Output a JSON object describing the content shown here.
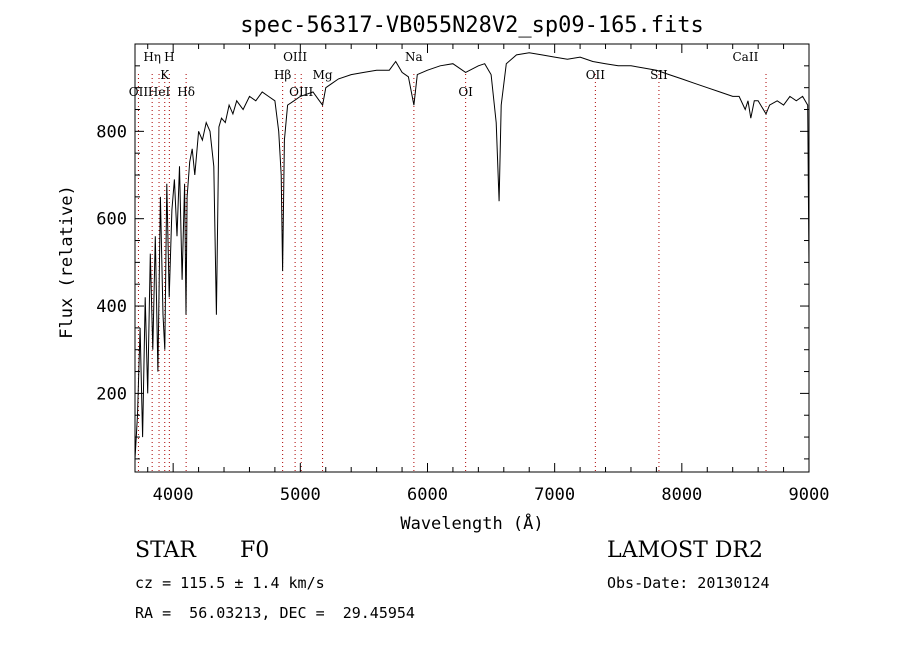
{
  "chart_data": {
    "type": "line",
    "title": "spec-56317-VB055N28V2_sp09-165.fits",
    "xlabel": "Wavelength (Å)",
    "ylabel": "Flux (relative)",
    "xlim": [
      3700,
      9000
    ],
    "ylim": [
      20,
      1000
    ],
    "x_ticks": [
      4000,
      5000,
      6000,
      7000,
      8000,
      9000
    ],
    "y_ticks": [
      200,
      400,
      600,
      800
    ],
    "grid": false,
    "series": [
      {
        "x": [
          3700,
          3720,
          3740,
          3760,
          3780,
          3800,
          3820,
          3840,
          3860,
          3880,
          3900,
          3920,
          3934,
          3950,
          3969,
          3990,
          4010,
          4030,
          4050,
          4070,
          4090,
          4101,
          4110,
          4130,
          4150,
          4170,
          4200,
          4230,
          4260,
          4290,
          4320,
          4340,
          4360,
          4380,
          4410,
          4440,
          4470,
          4500,
          4550,
          4600,
          4650,
          4700,
          4750,
          4800,
          4830,
          4850,
          4861,
          4875,
          4900,
          4950,
          5000,
          5050,
          5100,
          5150,
          5175,
          5200,
          5250,
          5300,
          5400,
          5500,
          5600,
          5700,
          5750,
          5800,
          5850,
          5893,
          5920,
          6000,
          6100,
          6200,
          6300,
          6400,
          6450,
          6500,
          6540,
          6563,
          6580,
          6620,
          6700,
          6800,
          6900,
          7000,
          7100,
          7200,
          7300,
          7400,
          7500,
          7600,
          7700,
          7800,
          7900,
          8000,
          8100,
          8200,
          8300,
          8400,
          8450,
          8498,
          8520,
          8542,
          8570,
          8600,
          8662,
          8690,
          8750,
          8800,
          8850,
          8900,
          8950,
          8990,
          9000
        ],
        "y": [
          50,
          150,
          350,
          100,
          420,
          200,
          520,
          300,
          560,
          250,
          650,
          380,
          300,
          680,
          420,
          620,
          690,
          560,
          720,
          460,
          680,
          380,
          650,
          730,
          760,
          700,
          800,
          780,
          820,
          800,
          720,
          380,
          810,
          830,
          820,
          860,
          840,
          870,
          850,
          880,
          870,
          890,
          880,
          870,
          800,
          700,
          480,
          780,
          860,
          870,
          880,
          885,
          890,
          870,
          860,
          900,
          910,
          920,
          930,
          935,
          940,
          940,
          960,
          935,
          925,
          860,
          930,
          940,
          950,
          955,
          935,
          950,
          955,
          930,
          820,
          640,
          860,
          955,
          975,
          980,
          975,
          970,
          965,
          970,
          960,
          955,
          950,
          950,
          945,
          940,
          930,
          920,
          910,
          900,
          890,
          880,
          880,
          850,
          870,
          830,
          870,
          870,
          840,
          860,
          870,
          860,
          880,
          870,
          880,
          860,
          480
        ]
      }
    ],
    "line_markers": [
      {
        "label": "Hη",
        "x": 3835,
        "row": 1
      },
      {
        "label": "H",
        "x": 3970,
        "row": 1
      },
      {
        "label": "K",
        "x": 3934,
        "row": 2
      },
      {
        "label": "OII",
        "x": 3727,
        "row": 3
      },
      {
        "label": "HeI",
        "x": 3889,
        "row": 3
      },
      {
        "label": "Hδ",
        "x": 4102,
        "row": 3
      },
      {
        "label": "OIII",
        "x": 4959,
        "row": 1
      },
      {
        "label": "Hβ",
        "x": 4861,
        "row": 2
      },
      {
        "label": "OIII",
        "x": 5007,
        "row": 3
      },
      {
        "label": "Mg",
        "x": 5175,
        "row": 2
      },
      {
        "label": "Na",
        "x": 5893,
        "row": 1
      },
      {
        "label": "OI",
        "x": 6300,
        "row": 3
      },
      {
        "label": "OII",
        "x": 7320,
        "row": 2
      },
      {
        "label": "SII",
        "x": 7820,
        "row": 2
      },
      {
        "label": "CaII",
        "x": 8500,
        "row": 1
      }
    ],
    "marker_lines_x": [
      3727,
      3835,
      3889,
      3934,
      3970,
      4102,
      4861,
      4959,
      5007,
      5175,
      5893,
      6300,
      7320,
      7820,
      8662
    ]
  },
  "info": {
    "object_class": "STAR",
    "subclass": "F0",
    "survey": "LAMOST DR2",
    "redshift": "cz = 115.5 ± 1.4 km/s",
    "obs_date": "Obs-Date: 20130124",
    "coords": "RA =  56.03213, DEC =  29.45954"
  },
  "colors": {
    "spectrum": "#000000",
    "marker_lines": "#aa0000"
  }
}
